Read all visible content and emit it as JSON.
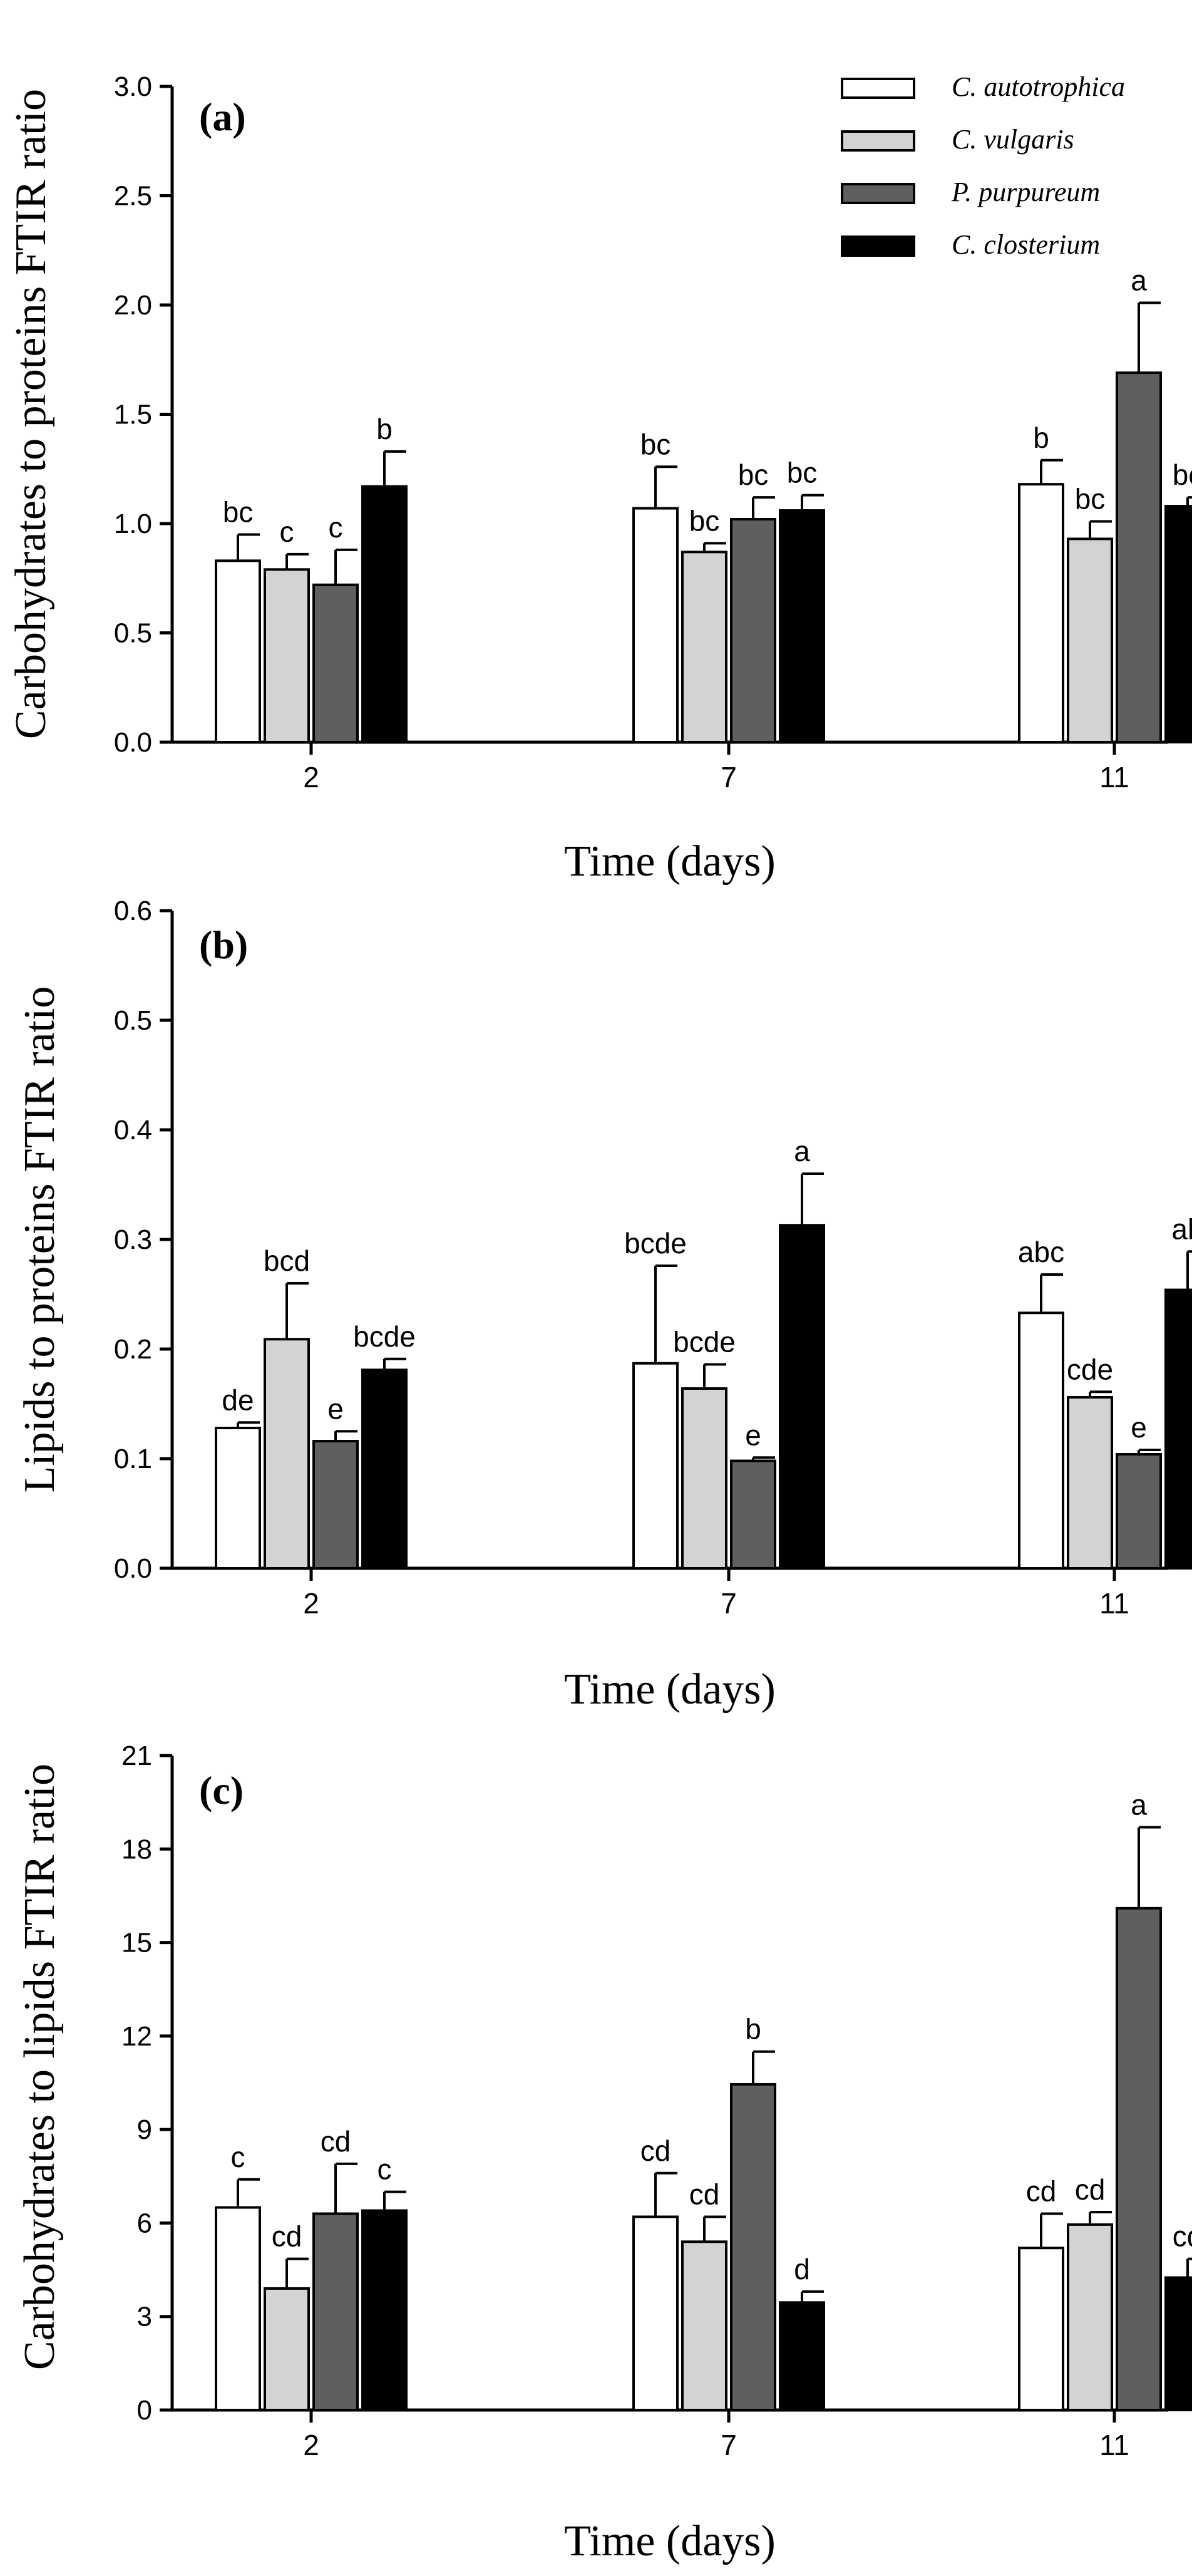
{
  "legend": {
    "entries": [
      {
        "name": "C. autotrophica",
        "color": "#ffffff"
      },
      {
        "name": "C. vulgaris",
        "color": "#d3d3d3"
      },
      {
        "name": "P. purpureum",
        "color": "#5f5f5f"
      },
      {
        "name": "C. closterium",
        "color": "#000000"
      }
    ],
    "placement": "top-right"
  },
  "chart_data": [
    {
      "type": "bar",
      "panel_label": "(a)",
      "ylabel": "Carbohydrates to proteins FTIR ratio",
      "xlabel": "Time (days)",
      "categories": [
        "2",
        "7",
        "11"
      ],
      "ylim": [
        0,
        3.0
      ],
      "yticks": [
        0.0,
        0.5,
        1.0,
        1.5,
        2.0,
        2.5,
        3.0
      ],
      "ytick_labels": [
        "0.0",
        "0.5",
        "1.0",
        "1.5",
        "2.0",
        "2.5",
        "3.0"
      ],
      "series": [
        {
          "name": "C. autotrophica",
          "values": [
            0.83,
            1.07,
            1.18
          ],
          "errors": [
            0.12,
            0.19,
            0.11
          ],
          "letters": [
            "bc",
            "bc",
            "b"
          ]
        },
        {
          "name": "C. vulgaris",
          "values": [
            0.79,
            0.87,
            0.93
          ],
          "errors": [
            0.07,
            0.04,
            0.08
          ],
          "letters": [
            "c",
            "bc",
            "bc"
          ]
        },
        {
          "name": "P. purpureum",
          "values": [
            0.72,
            1.02,
            1.69
          ],
          "errors": [
            0.16,
            0.1,
            0.32
          ],
          "letters": [
            "c",
            "bc",
            "a"
          ]
        },
        {
          "name": "C. closterium",
          "values": [
            1.17,
            1.06,
            1.08
          ],
          "errors": [
            0.16,
            0.07,
            0.04
          ],
          "letters": [
            "b",
            "bc",
            "bc"
          ]
        }
      ]
    },
    {
      "type": "bar",
      "panel_label": "(b)",
      "ylabel": "Lipids to proteins FTIR ratio",
      "xlabel": "Time (days)",
      "categories": [
        "2",
        "7",
        "11"
      ],
      "ylim": [
        0,
        0.6
      ],
      "yticks": [
        0.0,
        0.1,
        0.2,
        0.3,
        0.4,
        0.5,
        0.6
      ],
      "ytick_labels": [
        "0.0",
        "0.1",
        "0.2",
        "0.3",
        "0.4",
        "0.5",
        "0.6"
      ],
      "series": [
        {
          "name": "C. autotrophica",
          "values": [
            0.128,
            0.187,
            0.233
          ],
          "errors": [
            0.005,
            0.089,
            0.035
          ],
          "letters": [
            "de",
            "bcde",
            "abc"
          ]
        },
        {
          "name": "C. vulgaris",
          "values": [
            0.209,
            0.164,
            0.156
          ],
          "errors": [
            0.051,
            0.022,
            0.005
          ],
          "letters": [
            "bcd",
            "bcde",
            "cde"
          ]
        },
        {
          "name": "P. purpureum",
          "values": [
            0.116,
            0.098,
            0.104
          ],
          "errors": [
            0.009,
            0.003,
            0.004
          ],
          "letters": [
            "e",
            "e",
            "e"
          ]
        },
        {
          "name": "C. closterium",
          "values": [
            0.181,
            0.313,
            0.254
          ],
          "errors": [
            0.01,
            0.047,
            0.035
          ],
          "letters": [
            "bcde",
            "a",
            "ab"
          ]
        }
      ]
    },
    {
      "type": "bar",
      "panel_label": "(c)",
      "ylabel": "Carbohydrates to lipids FTIR ratio",
      "xlabel": "Time (days)",
      "categories": [
        "2",
        "7",
        "11"
      ],
      "ylim": [
        0,
        21
      ],
      "yticks": [
        0,
        3,
        6,
        9,
        12,
        15,
        18,
        21
      ],
      "ytick_labels": [
        "0",
        "3",
        "6",
        "9",
        "12",
        "15",
        "18",
        "21"
      ],
      "series": [
        {
          "name": "C. autotrophica",
          "values": [
            6.5,
            6.2,
            5.2
          ],
          "errors": [
            0.9,
            1.4,
            1.1
          ],
          "letters": [
            "c",
            "cd",
            "cd"
          ]
        },
        {
          "name": "C. vulgaris",
          "values": [
            3.9,
            5.4,
            5.95
          ],
          "errors": [
            0.95,
            0.8,
            0.4
          ],
          "letters": [
            "cd",
            "cd",
            "cd"
          ]
        },
        {
          "name": "P. purpureum",
          "values": [
            6.3,
            10.45,
            16.1
          ],
          "errors": [
            1.6,
            1.05,
            2.6
          ],
          "letters": [
            "cd",
            "b",
            "a"
          ]
        },
        {
          "name": "C. closterium",
          "values": [
            6.4,
            3.45,
            4.25
          ],
          "errors": [
            0.6,
            0.35,
            0.6
          ],
          "letters": [
            "c",
            "d",
            "cd"
          ]
        }
      ]
    }
  ]
}
